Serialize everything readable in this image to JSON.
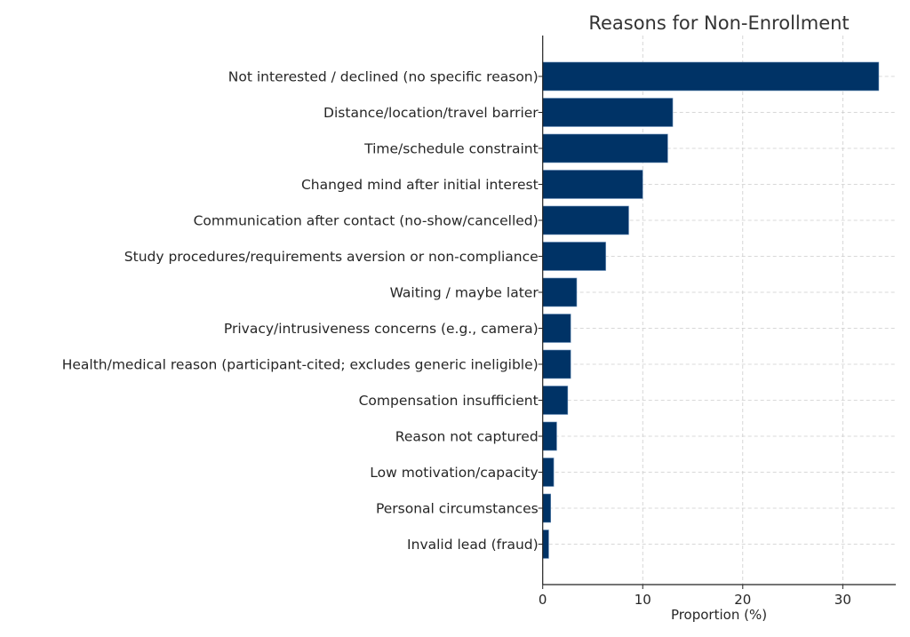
{
  "chart_data": {
    "type": "bar",
    "orientation": "horizontal",
    "title": "Reasons for Non-Enrollment",
    "xlabel": "Proportion (%)",
    "ylabel": "",
    "xlim": [
      0,
      35.3
    ],
    "xticks": [
      0,
      10,
      20,
      30
    ],
    "grid": true,
    "bar_color": "#003366",
    "categories": [
      "Not interested / declined (no specific reason)",
      "Distance/location/travel barrier",
      "Time/schedule constraint",
      "Changed mind after initial interest",
      "Communication after contact (no-show/cancelled)",
      "Study procedures/requirements aversion or non-compliance",
      "Waiting / maybe later",
      "Privacy/intrusiveness concerns (e.g., camera)",
      "Health/medical reason (participant-cited; excludes generic ineligible)",
      "Compensation insufficient",
      "Reason not captured",
      "Low motivation/capacity",
      "Personal circumstances",
      "Invalid lead (fraud)"
    ],
    "values": [
      33.6,
      13.0,
      12.5,
      10.0,
      8.6,
      6.3,
      3.4,
      2.8,
      2.8,
      2.5,
      1.4,
      1.1,
      0.8,
      0.6
    ]
  }
}
